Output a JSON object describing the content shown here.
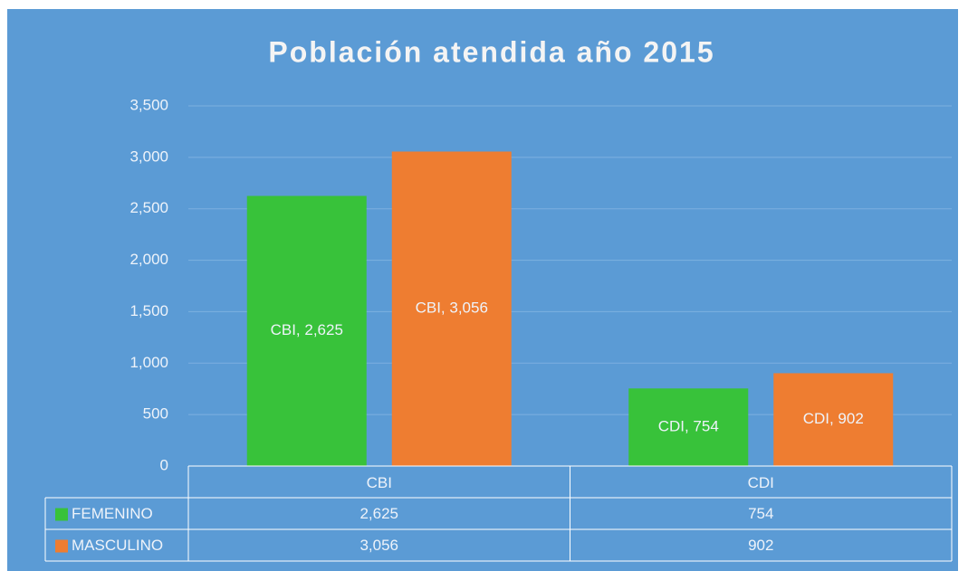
{
  "chart_data": {
    "type": "bar",
    "title": "Población atendida año 2015",
    "categories": [
      "CBI",
      "CDI"
    ],
    "series": [
      {
        "name": "FEMENINO",
        "color": "#38c23a",
        "values": [
          2625,
          754
        ],
        "value_labels": [
          "CBI, 2,625",
          "CDI, 754"
        ],
        "table_labels": [
          "2,625",
          "754"
        ]
      },
      {
        "name": "MASCULINO",
        "color": "#ee7d31",
        "values": [
          3056,
          902
        ],
        "value_labels": [
          "CBI, 3,056",
          "CDI, 902"
        ],
        "table_labels": [
          "3,056",
          "902"
        ]
      }
    ],
    "ylim": [
      0,
      3500
    ],
    "yticks": [
      0,
      500,
      {
        "value": 1000,
        "label": "1,000"
      },
      {
        "value": 1500,
        "label": "1,500"
      },
      {
        "value": 2000,
        "label": "2,000"
      },
      {
        "value": 2500,
        "label": "2,500"
      },
      {
        "value": 3000,
        "label": "3,000"
      },
      {
        "value": 3500,
        "label": "3,500"
      }
    ],
    "grid": true
  }
}
